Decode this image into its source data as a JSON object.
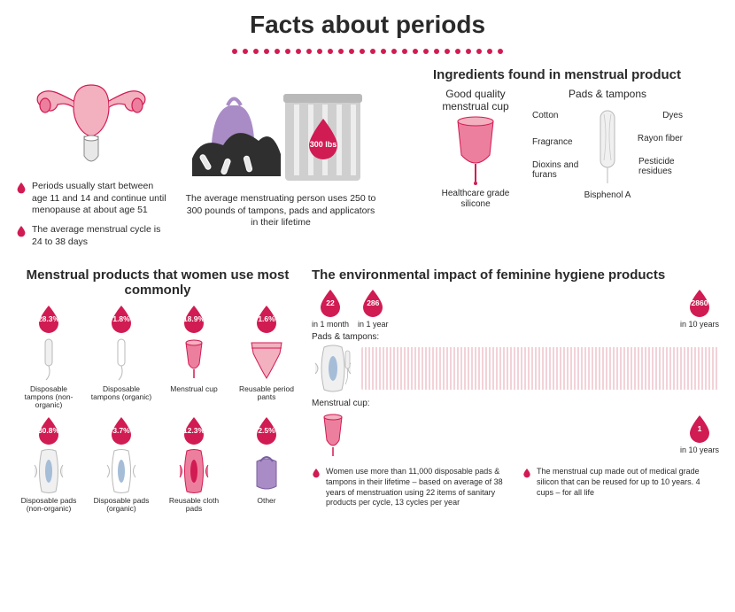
{
  "colors": {
    "accent": "#d11b53",
    "accent_light": "#ed7f9e",
    "pink_fill": "#f3b0bf",
    "lilac": "#a98cc6",
    "gray": "#b9b9b9",
    "dark_gray": "#4a4a4a",
    "text": "#2a2a2a",
    "blue_soft": "#a6bdd8",
    "bg": "#ffffff"
  },
  "title": "Facts about periods",
  "bullets": {
    "b1": "Periods usually start between age 11 and 14 and continue until menopause at about age 51",
    "b2": "The average menstrual cycle is 24 to 38 days"
  },
  "waste": {
    "drop_label": "300 lbs",
    "text": "The average menstruating person uses 250 to 300 pounds of tampons, pads and applicators in their lifetime"
  },
  "ingredients": {
    "title": "Ingredients found in menstrual product",
    "cup_title": "Good quality menstrual cup",
    "cup_caption": "Healthcare grade silicone",
    "pad_title": "Pads & tampons",
    "labels_left": [
      "Cotton",
      "Fragrance",
      "Dioxins and furans"
    ],
    "labels_right": [
      "Dyes",
      "Rayon fiber",
      "Pesticide residues"
    ],
    "label_bottom": "Bisphenol A"
  },
  "products": {
    "title": "Menstrual products that women use most commonly",
    "items": [
      {
        "pct": "28.3%",
        "label": "Disposable tampons (non-organic)"
      },
      {
        "pct": "1.8%",
        "label": "Disposable tampons (organic)"
      },
      {
        "pct": "18.9%",
        "label": "Menstrual cup"
      },
      {
        "pct": "1.6%",
        "label": "Reusable period pants"
      },
      {
        "pct": "30.8%",
        "label": "Disposable pads (non-organic)"
      },
      {
        "pct": "3.7%",
        "label": "Disposable pads (organic)"
      },
      {
        "pct": "12.3%",
        "label": "Reusable cloth pads"
      },
      {
        "pct": "2.5%",
        "label": "Other"
      }
    ]
  },
  "environment": {
    "title": "The environmental impact of feminine hygiene products",
    "stats": [
      {
        "num": "22",
        "cap": "in 1 month"
      },
      {
        "num": "286",
        "cap": "in 1 year"
      },
      {
        "num": "2860",
        "cap": "in 10 years"
      }
    ],
    "row_pads_label": "Pads & tampons:",
    "row_cup_label": "Menstrual cup:",
    "cup_stat": {
      "num": "1",
      "cap": "in 10 years"
    },
    "bar_color": "#d11b53",
    "footnote1": "Women use more than 11,000 disposable pads & tampons in their lifetime – based on average of 38 years of menstruation using 22 items of sanitary products per cycle, 13 cycles per year",
    "footnote2": "The menstrual cup made out of medical grade silicon that can be reused for up to 10 years. 4 cups – for all life"
  }
}
